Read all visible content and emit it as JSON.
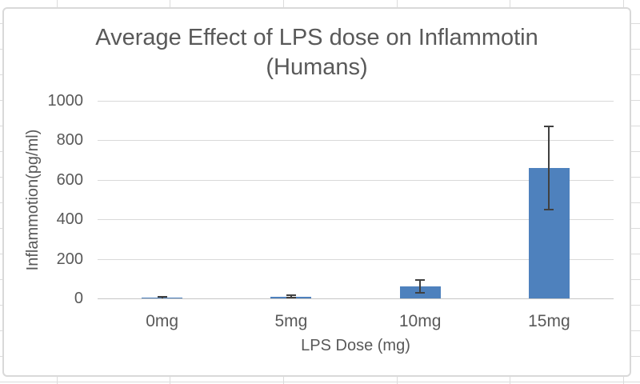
{
  "chart": {
    "title_line1": "Average Effect of LPS dose on Inflammotin",
    "title_line2": "(Humans)",
    "y_axis_title": "Inflammotion(pg/ml)",
    "x_axis_title": "LPS Dose (mg)"
  },
  "chart_data": {
    "type": "bar",
    "title": "Average Effect of LPS dose on Inflammotin (Humans)",
    "xlabel": "LPS Dose (mg)",
    "ylabel": "Inflammotion(pg/ml)",
    "categories": [
      "0mg",
      "5mg",
      "10mg",
      "15mg"
    ],
    "values": [
      3,
      9,
      60,
      660
    ],
    "error_bars": [
      5,
      6,
      32,
      212
    ],
    "yticks": [
      0,
      200,
      400,
      600,
      800,
      1000
    ],
    "ylim": [
      0,
      1000
    ],
    "grid": true,
    "legend": false,
    "bar_color": "#4E81BD",
    "error_color": "#404040",
    "gridline_color": "#D9D9D9",
    "axis_line_color": "#C6C6C6",
    "text_color": "#595959"
  },
  "spreadsheet": {
    "background": "#FFFFFF",
    "gridline_color": "#DCDCDC"
  }
}
